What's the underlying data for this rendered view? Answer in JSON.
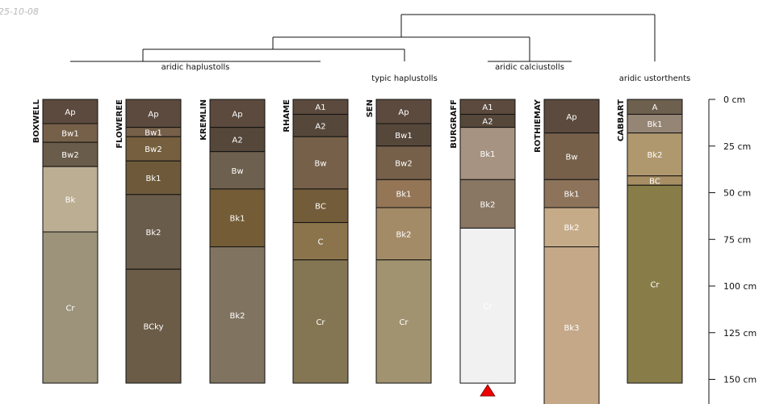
{
  "timestamp": "25-10-08",
  "depth_axis": {
    "max_depth": 160,
    "ticks": [
      {
        "value": 0,
        "label": "0 cm"
      },
      {
        "value": 25,
        "label": "25 cm"
      },
      {
        "value": 50,
        "label": "50 cm"
      },
      {
        "value": 75,
        "label": "75 cm"
      },
      {
        "value": 100,
        "label": "100 cm"
      },
      {
        "value": 125,
        "label": "125 cm"
      },
      {
        "value": 150,
        "label": "150 cm"
      }
    ]
  },
  "groups": [
    {
      "label": "aridic haplustolls"
    },
    {
      "label": "typic haplustolls"
    },
    {
      "label": "aridic calciustolls"
    },
    {
      "label": "aridic ustorthents"
    }
  ],
  "profiles": [
    {
      "name": "BOXWELL",
      "horizons": [
        {
          "name": "Ap",
          "top": 0,
          "bottom": 13,
          "color": "#5b4a3d"
        },
        {
          "name": "Bw1",
          "top": 13,
          "bottom": 23,
          "color": "#76604a"
        },
        {
          "name": "Bw2",
          "top": 23,
          "bottom": 36,
          "color": "#6a5c4a"
        },
        {
          "name": "Bk",
          "top": 36,
          "bottom": 71,
          "color": "#bcae93"
        },
        {
          "name": "Cr",
          "top": 71,
          "bottom": 152,
          "color": "#9c937a"
        }
      ]
    },
    {
      "name": "FLOWEREE",
      "horizons": [
        {
          "name": "Ap",
          "top": 0,
          "bottom": 15,
          "color": "#5b4a3d"
        },
        {
          "name": "Bw1",
          "top": 15,
          "bottom": 20,
          "color": "#76604a"
        },
        {
          "name": "Bw2",
          "top": 20,
          "bottom": 33,
          "color": "#755f3e"
        },
        {
          "name": "Bk1",
          "top": 33,
          "bottom": 51,
          "color": "#6e5a3a"
        },
        {
          "name": "Bk2",
          "top": 51,
          "bottom": 91,
          "color": "#6a5c4a"
        },
        {
          "name": "BCky",
          "top": 91,
          "bottom": 152,
          "color": "#6b5c48"
        }
      ]
    },
    {
      "name": "KREMLIN",
      "horizons": [
        {
          "name": "Ap",
          "top": 0,
          "bottom": 15,
          "color": "#5b4a3d"
        },
        {
          "name": "A2",
          "top": 15,
          "bottom": 28,
          "color": "#55473a"
        },
        {
          "name": "Bw",
          "top": 28,
          "bottom": 48,
          "color": "#6e604e"
        },
        {
          "name": "Bk1",
          "top": 48,
          "bottom": 79,
          "color": "#735c36"
        },
        {
          "name": "Bk2",
          "top": 79,
          "bottom": 152,
          "color": "#807460"
        }
      ]
    },
    {
      "name": "RHAME",
      "horizons": [
        {
          "name": "A1",
          "top": 0,
          "bottom": 8,
          "color": "#5b4a3d"
        },
        {
          "name": "A2",
          "top": 8,
          "bottom": 20,
          "color": "#55473a"
        },
        {
          "name": "Bw",
          "top": 20,
          "bottom": 48,
          "color": "#76604a"
        },
        {
          "name": "BC",
          "top": 48,
          "bottom": 66,
          "color": "#735c3a"
        },
        {
          "name": "C",
          "top": 66,
          "bottom": 86,
          "color": "#8b744c"
        },
        {
          "name": "Cr",
          "top": 86,
          "bottom": 152,
          "color": "#857653"
        }
      ]
    },
    {
      "name": "SEN",
      "horizons": [
        {
          "name": "Ap",
          "top": 0,
          "bottom": 13,
          "color": "#5b4a3d"
        },
        {
          "name": "Bw1",
          "top": 13,
          "bottom": 25,
          "color": "#55473a"
        },
        {
          "name": "Bw2",
          "top": 25,
          "bottom": 43,
          "color": "#76604a"
        },
        {
          "name": "Bk1",
          "top": 43,
          "bottom": 58,
          "color": "#947556"
        },
        {
          "name": "Bk2",
          "top": 58,
          "bottom": 86,
          "color": "#a48b68"
        },
        {
          "name": "Cr",
          "top": 86,
          "bottom": 152,
          "color": "#a29370"
        }
      ]
    },
    {
      "name": "BURGRAFF",
      "horizons": [
        {
          "name": "A1",
          "top": 0,
          "bottom": 8,
          "color": "#5b4a3d"
        },
        {
          "name": "A2",
          "top": 8,
          "bottom": 15,
          "color": "#55473a"
        },
        {
          "name": "Bk1",
          "top": 15,
          "bottom": 43,
          "color": "#a69381"
        },
        {
          "name": "Bk2",
          "top": 43,
          "bottom": 69,
          "color": "#8a7763"
        },
        {
          "name": "Cr",
          "top": 69,
          "bottom": 152,
          "color": "#f1f1f1"
        }
      ],
      "truncated": true
    },
    {
      "name": "ROTHIEMAY",
      "horizons": [
        {
          "name": "Ap",
          "top": 0,
          "bottom": 18,
          "color": "#5b4a3d"
        },
        {
          "name": "Bw",
          "top": 18,
          "bottom": 43,
          "color": "#76604a"
        },
        {
          "name": "Bk1",
          "top": 43,
          "bottom": 58,
          "color": "#8c735a"
        },
        {
          "name": "Bk2",
          "top": 58,
          "bottom": 79,
          "color": "#c6ab89"
        },
        {
          "name": "Bk3",
          "top": 79,
          "bottom": 165,
          "color": "#c4a888"
        }
      ]
    },
    {
      "name": "CABBART",
      "horizons": [
        {
          "name": "A",
          "top": 0,
          "bottom": 8,
          "color": "#6e604e"
        },
        {
          "name": "Bk1",
          "top": 8,
          "bottom": 18,
          "color": "#958575"
        },
        {
          "name": "Bk2",
          "top": 18,
          "bottom": 41,
          "color": "#b0986e"
        },
        {
          "name": "BC",
          "top": 41,
          "bottom": 46,
          "color": "#a88e64"
        },
        {
          "name": "Cr",
          "top": 46,
          "bottom": 152,
          "color": "#887d48"
        }
      ]
    }
  ],
  "colors": {
    "line": "#111111",
    "truncation_marker": "#ee0000"
  }
}
